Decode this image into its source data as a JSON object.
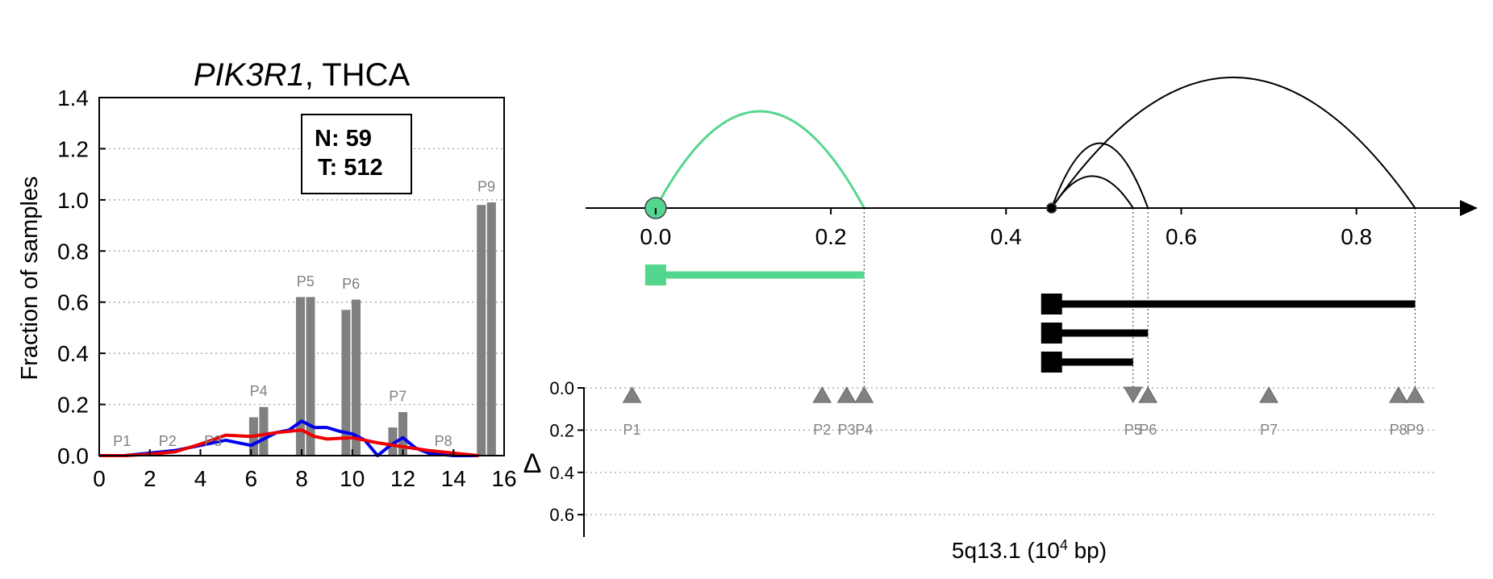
{
  "chart_data": [
    {
      "type": "bar",
      "title_gene": "PIK3R1",
      "title_rest": ", THCA",
      "xlabel": "",
      "ylabel": "Fraction of samples",
      "xlim": [
        0,
        16
      ],
      "ylim": [
        0,
        1.4
      ],
      "xticks": [
        "0",
        "2",
        "4",
        "6",
        "8",
        "10",
        "12",
        "14",
        "16"
      ],
      "yticks": [
        "0.0",
        "0.2",
        "0.4",
        "0.6",
        "0.8",
        "1.0",
        "1.2",
        "1.4"
      ],
      "grid": "horizontal dotted",
      "info_box": {
        "n": "N: 59",
        "t": "T: 512"
      },
      "bars": [
        {
          "x": 1.0,
          "value": 0.0,
          "group": "P1"
        },
        {
          "x": 2.65,
          "value": 0.0,
          "group": "P2"
        },
        {
          "x": 6.1,
          "value": 0.15,
          "group": "P4"
        },
        {
          "x": 6.5,
          "value": 0.19,
          "group": "P4"
        },
        {
          "x": 7.95,
          "value": 0.62,
          "group": "P5"
        },
        {
          "x": 8.35,
          "value": 0.62,
          "group": "P5"
        },
        {
          "x": 9.75,
          "value": 0.57,
          "group": "P6"
        },
        {
          "x": 10.15,
          "value": 0.61,
          "group": "P6"
        },
        {
          "x": 11.6,
          "value": 0.11,
          "group": "P7"
        },
        {
          "x": 12.0,
          "value": 0.17,
          "group": "P7"
        },
        {
          "x": 15.1,
          "value": 0.98,
          "group": "P9"
        },
        {
          "x": 15.5,
          "value": 0.99,
          "group": "P9"
        }
      ],
      "bar_labels": [
        {
          "label": "P1",
          "x": 0.9,
          "y": 0.025
        },
        {
          "label": "P2",
          "x": 2.7,
          "y": 0.025
        },
        {
          "label": "P3",
          "x": 4.5,
          "y": 0.025
        },
        {
          "label": "P4",
          "x": 6.3,
          "y": 0.22
        },
        {
          "label": "P5",
          "x": 8.15,
          "y": 0.65
        },
        {
          "label": "P6",
          "x": 9.95,
          "y": 0.64
        },
        {
          "label": "P7",
          "x": 11.8,
          "y": 0.2
        },
        {
          "label": "P8",
          "x": 13.6,
          "y": 0.025
        },
        {
          "label": "P9",
          "x": 15.3,
          "y": 1.02
        }
      ],
      "series": [
        {
          "color": "#0000ee",
          "x": [
            0,
            1,
            2,
            3,
            4,
            5,
            6,
            7,
            7.5,
            8,
            8.5,
            9,
            9.5,
            10,
            10.5,
            11,
            11.5,
            12,
            12.5,
            13,
            14,
            15
          ],
          "values": [
            0.0,
            0.0,
            0.01,
            0.02,
            0.04,
            0.06,
            0.04,
            0.09,
            0.1,
            0.135,
            0.11,
            0.11,
            0.095,
            0.085,
            0.06,
            0.0,
            0.04,
            0.07,
            0.03,
            0.01,
            0.0,
            0.0
          ]
        },
        {
          "color": "#ee0000",
          "x": [
            0,
            1,
            2,
            3,
            4,
            5,
            6,
            7,
            8,
            8.5,
            9,
            10,
            11,
            12,
            13,
            14,
            15
          ],
          "values": [
            0.0,
            0.0,
            0.005,
            0.015,
            0.045,
            0.08,
            0.075,
            0.09,
            0.1,
            0.075,
            0.065,
            0.07,
            0.05,
            0.035,
            0.02,
            0.01,
            0.0
          ]
        }
      ]
    },
    {
      "type": "diagram",
      "xlabel_main": "5q13.1 (10",
      "xlabel_sup": "4",
      "xlabel_tail": " bp)",
      "xlim": [
        -0.08,
        0.92
      ],
      "xticks": [
        0.0,
        0.2,
        0.4,
        0.6,
        0.8
      ],
      "xtick_labels": [
        "0.0",
        "0.2",
        "0.4",
        "0.6",
        "0.8"
      ],
      "colors": {
        "highlight": "#55d68e",
        "line": "#000000",
        "marker": "#808080"
      },
      "arcs": [
        {
          "start": 0.0,
          "end": 0.238,
          "height": 1.0,
          "color": "#55d68e",
          "width": 3
        },
        {
          "start": 0.452,
          "end": 0.545,
          "height": 0.33,
          "color": "#000000",
          "width": 2
        },
        {
          "start": 0.452,
          "end": 0.562,
          "height": 0.67,
          "color": "#000000",
          "width": 2
        },
        {
          "start": 0.452,
          "end": 0.867,
          "height": 1.35,
          "color": "#000000",
          "width": 2
        }
      ],
      "start_markers": [
        {
          "x": 0.0,
          "color": "#55d68e",
          "size": "large"
        },
        {
          "x": 0.452,
          "color": "#000000",
          "size": "small"
        }
      ],
      "isoforms": [
        {
          "start": 0.0,
          "end": 0.238,
          "color": "#55d68e",
          "row": 0
        },
        {
          "start": 0.452,
          "end": 0.867,
          "color": "#000000",
          "row": 1
        },
        {
          "start": 0.452,
          "end": 0.562,
          "color": "#000000",
          "row": 2
        },
        {
          "start": 0.452,
          "end": 0.545,
          "color": "#000000",
          "row": 3
        }
      ],
      "dotted_drops": [
        0.238,
        0.545,
        0.562,
        0.867
      ],
      "delta_label": "Δ",
      "delta_ylim": [
        0,
        0.7
      ],
      "delta_yticks": [
        "0.0",
        "0.2",
        "0.4",
        "0.6"
      ],
      "peaks": [
        {
          "label": "P1",
          "x": -0.027,
          "delta": 0.035,
          "dir": "up"
        },
        {
          "label": "P2",
          "x": 0.19,
          "delta": 0.035,
          "dir": "up"
        },
        {
          "label": "P3",
          "x": 0.218,
          "delta": 0.035,
          "dir": "up"
        },
        {
          "label": "P4",
          "x": 0.238,
          "delta": 0.035,
          "dir": "up"
        },
        {
          "label": "P5",
          "x": 0.545,
          "delta": 0.035,
          "dir": "down"
        },
        {
          "label": "P6",
          "x": 0.562,
          "delta": 0.035,
          "dir": "up"
        },
        {
          "label": "P7",
          "x": 0.7,
          "delta": 0.035,
          "dir": "up"
        },
        {
          "label": "P8",
          "x": 0.848,
          "delta": 0.035,
          "dir": "up"
        },
        {
          "label": "P9",
          "x": 0.867,
          "delta": 0.035,
          "dir": "up"
        }
      ]
    }
  ]
}
